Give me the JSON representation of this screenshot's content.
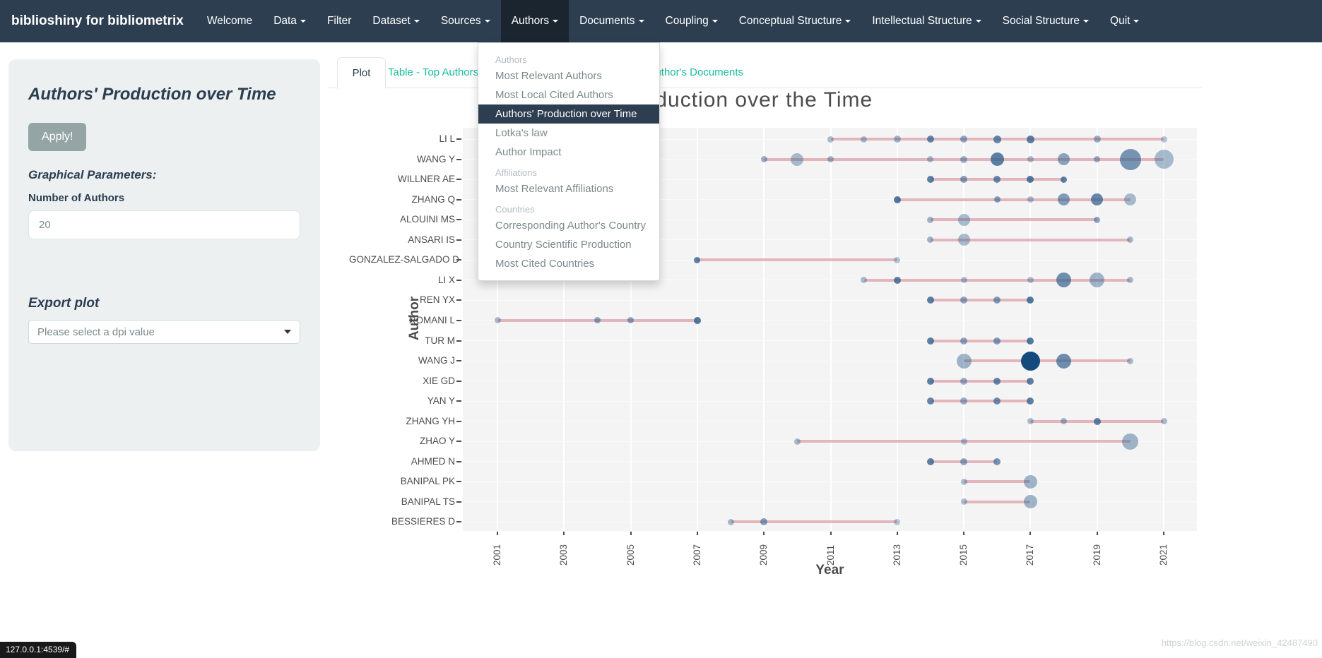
{
  "navbar": {
    "brand": "biblioshiny for bibliometrix",
    "items": [
      {
        "label": "Welcome",
        "dropdown": false,
        "active": false
      },
      {
        "label": "Data",
        "dropdown": true,
        "active": false
      },
      {
        "label": "Filter",
        "dropdown": false,
        "active": false
      },
      {
        "label": "Dataset",
        "dropdown": true,
        "active": false
      },
      {
        "label": "Sources",
        "dropdown": true,
        "active": false
      },
      {
        "label": "Authors",
        "dropdown": true,
        "active": true
      },
      {
        "label": "Documents",
        "dropdown": true,
        "active": false
      },
      {
        "label": "Coupling",
        "dropdown": true,
        "active": false
      },
      {
        "label": "Conceptual Structure",
        "dropdown": true,
        "active": false
      },
      {
        "label": "Intellectual Structure",
        "dropdown": true,
        "active": false
      },
      {
        "label": "Social Structure",
        "dropdown": true,
        "active": false
      },
      {
        "label": "Quit",
        "dropdown": true,
        "active": false
      }
    ]
  },
  "authors_menu": {
    "sections": [
      {
        "header": "Authors",
        "items": [
          "Most Relevant Authors",
          "Most Local Cited Authors",
          "Authors' Production over Time",
          "Lotka's law",
          "Author Impact"
        ]
      },
      {
        "header": "Affiliations",
        "items": [
          "Most Relevant Affiliations"
        ]
      },
      {
        "header": "Countries",
        "items": [
          "Corresponding Author's Country",
          "Country Scientific Production",
          "Most Cited Countries"
        ]
      }
    ],
    "active_item": "Authors' Production over Time"
  },
  "sidebar": {
    "title": "Authors' Production over Time",
    "apply_label": "Apply!",
    "graphical_parameters_label": "Graphical Parameters:",
    "number_of_authors_label": "Number of Authors",
    "number_of_authors_value": "20",
    "export_plot_label": "Export plot",
    "dpi_placeholder": "Please select a dpi value"
  },
  "tabs": {
    "active": "Plot",
    "items": [
      "Plot",
      "Table - Top Authors' Production",
      "Table - Top Author's Documents"
    ]
  },
  "statusbar": {
    "url": "127.0.0.1:4539/#"
  },
  "watermark": "https://blog.csdn.net/weixin_42487490",
  "chart_data": {
    "type": "scatter",
    "subtype": "dot-timeline",
    "title": "Top-Authors' Production over the Time",
    "xlabel": "Year",
    "ylabel": "Author",
    "x_ticks": [
      2001,
      2003,
      2005,
      2007,
      2009,
      2011,
      2013,
      2015,
      2017,
      2019,
      2021
    ],
    "x_range": [
      2000,
      2022
    ],
    "grid": true,
    "colors": {
      "dot": "#33618f",
      "dot_max": "#154a7d",
      "line": "#d58a96",
      "plot_bg": "#f4f4f4"
    },
    "series": [
      {
        "author": "LI L",
        "start": 2011,
        "end": 2021,
        "dots": [
          {
            "year": 2011,
            "d": 9,
            "o": 0.4
          },
          {
            "year": 2012,
            "d": 9,
            "o": 0.4
          },
          {
            "year": 2013,
            "d": 10,
            "o": 0.45
          },
          {
            "year": 2014,
            "d": 10,
            "o": 0.75
          },
          {
            "year": 2015,
            "d": 10,
            "o": 0.55
          },
          {
            "year": 2016,
            "d": 11,
            "o": 0.75
          },
          {
            "year": 2017,
            "d": 11,
            "o": 0.8
          },
          {
            "year": 2019,
            "d": 10,
            "o": 0.5
          },
          {
            "year": 2021,
            "d": 9,
            "o": 0.35
          }
        ]
      },
      {
        "author": "WANG Y",
        "start": 2009,
        "end": 2021,
        "dots": [
          {
            "year": 2009,
            "d": 9,
            "o": 0.5
          },
          {
            "year": 2010,
            "d": 18,
            "o": 0.4
          },
          {
            "year": 2011,
            "d": 9,
            "o": 0.45
          },
          {
            "year": 2014,
            "d": 9,
            "o": 0.4
          },
          {
            "year": 2015,
            "d": 10,
            "o": 0.5
          },
          {
            "year": 2016,
            "d": 19,
            "o": 0.8
          },
          {
            "year": 2017,
            "d": 9,
            "o": 0.4
          },
          {
            "year": 2018,
            "d": 17,
            "o": 0.55
          },
          {
            "year": 2019,
            "d": 9,
            "o": 0.5
          },
          {
            "year": 2020,
            "d": 30,
            "o": 0.65
          },
          {
            "year": 2021,
            "d": 27,
            "o": 0.4
          }
        ]
      },
      {
        "author": "WILLNER AE",
        "start": 2014,
        "end": 2018,
        "dots": [
          {
            "year": 2014,
            "d": 10,
            "o": 0.8
          },
          {
            "year": 2015,
            "d": 10,
            "o": 0.6
          },
          {
            "year": 2016,
            "d": 10,
            "o": 0.75
          },
          {
            "year": 2017,
            "d": 10,
            "o": 0.85
          },
          {
            "year": 2018,
            "d": 9,
            "o": 0.8
          }
        ]
      },
      {
        "author": "ZHANG Q",
        "start": 2013,
        "end": 2020,
        "dots": [
          {
            "year": 2013,
            "d": 10,
            "o": 0.85
          },
          {
            "year": 2016,
            "d": 9,
            "o": 0.6
          },
          {
            "year": 2017,
            "d": 9,
            "o": 0.4
          },
          {
            "year": 2018,
            "d": 17,
            "o": 0.6
          },
          {
            "year": 2019,
            "d": 17,
            "o": 0.75
          },
          {
            "year": 2020,
            "d": 17,
            "o": 0.4
          }
        ]
      },
      {
        "author": "ALOUINI MS",
        "start": 2014,
        "end": 2019,
        "dots": [
          {
            "year": 2014,
            "d": 9,
            "o": 0.45
          },
          {
            "year": 2015,
            "d": 17,
            "o": 0.4
          },
          {
            "year": 2019,
            "d": 9,
            "o": 0.55
          }
        ]
      },
      {
        "author": "ANSARI IS",
        "start": 2014,
        "end": 2020,
        "dots": [
          {
            "year": 2014,
            "d": 9,
            "o": 0.45
          },
          {
            "year": 2015,
            "d": 17,
            "o": 0.4
          },
          {
            "year": 2020,
            "d": 9,
            "o": 0.4
          }
        ]
      },
      {
        "author": "GONZALEZ-SALGADO D",
        "start": 2007,
        "end": 2013,
        "dots": [
          {
            "year": 2007,
            "d": 9,
            "o": 0.8
          },
          {
            "year": 2013,
            "d": 9,
            "o": 0.35
          }
        ]
      },
      {
        "author": "LI X",
        "start": 2012,
        "end": 2020,
        "dots": [
          {
            "year": 2012,
            "d": 9,
            "o": 0.4
          },
          {
            "year": 2013,
            "d": 10,
            "o": 0.8
          },
          {
            "year": 2015,
            "d": 9,
            "o": 0.4
          },
          {
            "year": 2017,
            "d": 9,
            "o": 0.4
          },
          {
            "year": 2018,
            "d": 21,
            "o": 0.7
          },
          {
            "year": 2019,
            "d": 21,
            "o": 0.45
          },
          {
            "year": 2020,
            "d": 9,
            "o": 0.4
          }
        ]
      },
      {
        "author": "REN YX",
        "start": 2014,
        "end": 2017,
        "dots": [
          {
            "year": 2014,
            "d": 10,
            "o": 0.8
          },
          {
            "year": 2015,
            "d": 10,
            "o": 0.55
          },
          {
            "year": 2016,
            "d": 10,
            "o": 0.6
          },
          {
            "year": 2017,
            "d": 10,
            "o": 0.85
          }
        ]
      },
      {
        "author": "ROMANI L",
        "start": 2001,
        "end": 2007,
        "dots": [
          {
            "year": 2001,
            "d": 9,
            "o": 0.4
          },
          {
            "year": 2004,
            "d": 9,
            "o": 0.55
          },
          {
            "year": 2005,
            "d": 9,
            "o": 0.55
          },
          {
            "year": 2007,
            "d": 10,
            "o": 0.85
          }
        ]
      },
      {
        "author": "TUR M",
        "start": 2014,
        "end": 2017,
        "dots": [
          {
            "year": 2014,
            "d": 10,
            "o": 0.8
          },
          {
            "year": 2015,
            "d": 10,
            "o": 0.55
          },
          {
            "year": 2016,
            "d": 10,
            "o": 0.6
          },
          {
            "year": 2017,
            "d": 10,
            "o": 0.85
          }
        ]
      },
      {
        "author": "WANG J",
        "start": 2015,
        "end": 2020,
        "dots": [
          {
            "year": 2015,
            "d": 21,
            "o": 0.45
          },
          {
            "year": 2017,
            "d": 27,
            "o": 1,
            "c": "#154a7d"
          },
          {
            "year": 2018,
            "d": 21,
            "o": 0.7
          },
          {
            "year": 2020,
            "d": 9,
            "o": 0.4
          }
        ]
      },
      {
        "author": "XIE GD",
        "start": 2014,
        "end": 2017,
        "dots": [
          {
            "year": 2014,
            "d": 10,
            "o": 0.8
          },
          {
            "year": 2015,
            "d": 10,
            "o": 0.5
          },
          {
            "year": 2016,
            "d": 10,
            "o": 0.75
          },
          {
            "year": 2017,
            "d": 10,
            "o": 0.8
          }
        ]
      },
      {
        "author": "YAN Y",
        "start": 2014,
        "end": 2017,
        "dots": [
          {
            "year": 2014,
            "d": 10,
            "o": 0.75
          },
          {
            "year": 2015,
            "d": 10,
            "o": 0.5
          },
          {
            "year": 2016,
            "d": 10,
            "o": 0.7
          },
          {
            "year": 2017,
            "d": 10,
            "o": 0.8
          }
        ]
      },
      {
        "author": "ZHANG YH",
        "start": 2017,
        "end": 2021,
        "dots": [
          {
            "year": 2017,
            "d": 9,
            "o": 0.4
          },
          {
            "year": 2018,
            "d": 9,
            "o": 0.45
          },
          {
            "year": 2019,
            "d": 10,
            "o": 0.8
          },
          {
            "year": 2021,
            "d": 9,
            "o": 0.4
          }
        ]
      },
      {
        "author": "ZHAO Y",
        "start": 2010,
        "end": 2020,
        "dots": [
          {
            "year": 2010,
            "d": 9,
            "o": 0.4
          },
          {
            "year": 2015,
            "d": 9,
            "o": 0.4
          },
          {
            "year": 2020,
            "d": 23,
            "o": 0.45
          }
        ]
      },
      {
        "author": "AHMED N",
        "start": 2014,
        "end": 2016,
        "dots": [
          {
            "year": 2014,
            "d": 10,
            "o": 0.8
          },
          {
            "year": 2015,
            "d": 10,
            "o": 0.55
          },
          {
            "year": 2016,
            "d": 10,
            "o": 0.65
          }
        ]
      },
      {
        "author": "BANIPAL PK",
        "start": 2015,
        "end": 2017,
        "dots": [
          {
            "year": 2015,
            "d": 9,
            "o": 0.4
          },
          {
            "year": 2017,
            "d": 19,
            "o": 0.45
          }
        ]
      },
      {
        "author": "BANIPAL TS",
        "start": 2015,
        "end": 2017,
        "dots": [
          {
            "year": 2015,
            "d": 9,
            "o": 0.4
          },
          {
            "year": 2017,
            "d": 19,
            "o": 0.45
          }
        ]
      },
      {
        "author": "BESSIERES D",
        "start": 2008,
        "end": 2013,
        "dots": [
          {
            "year": 2008,
            "d": 9,
            "o": 0.4
          },
          {
            "year": 2009,
            "d": 10,
            "o": 0.6
          },
          {
            "year": 2013,
            "d": 9,
            "o": 0.35
          }
        ]
      }
    ]
  }
}
